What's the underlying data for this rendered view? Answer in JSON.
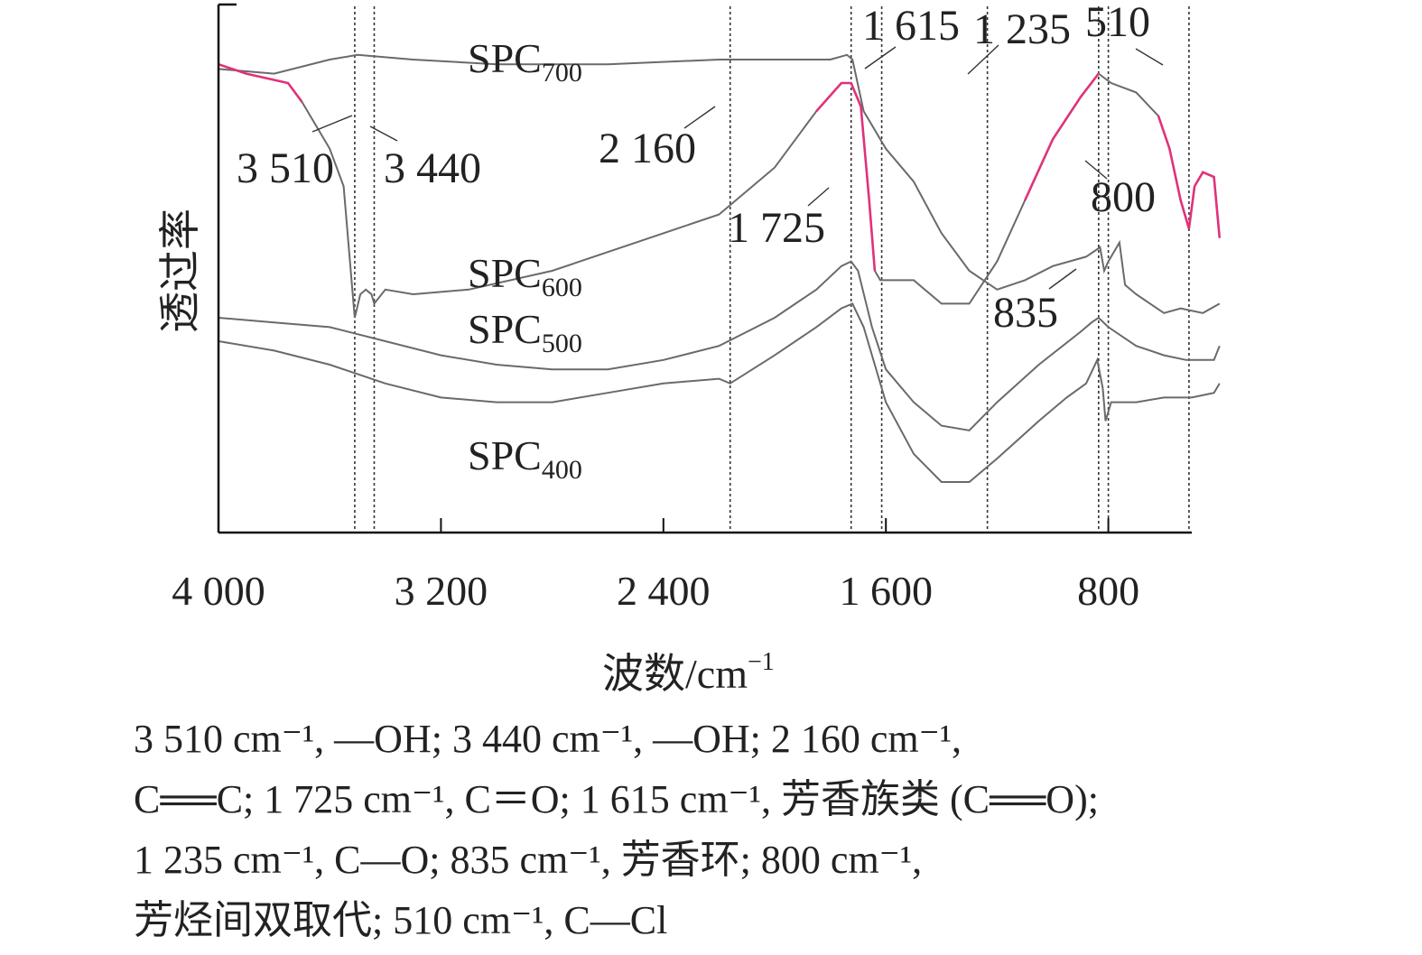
{
  "chart_data": {
    "type": "line",
    "xlabel": "波数/cm",
    "xlabel_sup": "−1",
    "ylabel": "透过率",
    "xlim": [
      4000,
      500
    ],
    "x_ticks": [
      {
        "value": 4000,
        "label": "4 000"
      },
      {
        "value": 3200,
        "label": "3 200"
      },
      {
        "value": 2400,
        "label": "2 400"
      },
      {
        "value": 1600,
        "label": "1 600"
      },
      {
        "value": 800,
        "label": "800"
      }
    ],
    "y_axis_values_shown": false,
    "colors": {
      "curve": "#6a6a6a",
      "highlight": "#e0327a",
      "axis": "#111111",
      "guide": "#333333"
    },
    "reference_lines": [
      3510,
      3440,
      2160,
      1725,
      1615,
      1235,
      835,
      800,
      510
    ],
    "peak_labels": [
      {
        "text": "3 510",
        "x": 3510
      },
      {
        "text": "3 440",
        "x": 3440
      },
      {
        "text": "2 160",
        "x": 2160
      },
      {
        "text": "1 725",
        "x": 1725
      },
      {
        "text": "1 615",
        "x": 1615
      },
      {
        "text": "1 235",
        "x": 1235
      },
      {
        "text": "510",
        "x": 510
      },
      {
        "text": "800",
        "x": 800
      },
      {
        "text": "835",
        "x": 835
      }
    ],
    "series": [
      {
        "name": "SPC",
        "sub": "700",
        "points": [
          [
            4000,
            0.93
          ],
          [
            3800,
            0.92
          ],
          [
            3600,
            0.95
          ],
          [
            3500,
            0.96
          ],
          [
            3300,
            0.95
          ],
          [
            3000,
            0.94
          ],
          [
            2600,
            0.94
          ],
          [
            2200,
            0.95
          ],
          [
            2000,
            0.95
          ],
          [
            1800,
            0.95
          ],
          [
            1740,
            0.96
          ],
          [
            1720,
            0.95
          ],
          [
            1680,
            0.84
          ],
          [
            1600,
            0.76
          ],
          [
            1500,
            0.69
          ],
          [
            1400,
            0.58
          ],
          [
            1300,
            0.5
          ],
          [
            1200,
            0.46
          ],
          [
            1100,
            0.48
          ],
          [
            1000,
            0.51
          ],
          [
            880,
            0.53
          ],
          [
            830,
            0.55
          ],
          [
            815,
            0.5
          ],
          [
            800,
            0.52
          ],
          [
            760,
            0.56
          ],
          [
            740,
            0.47
          ],
          [
            700,
            0.45
          ],
          [
            650,
            0.43
          ],
          [
            600,
            0.41
          ],
          [
            540,
            0.42
          ],
          [
            460,
            0.41
          ],
          [
            400,
            0.43
          ]
        ]
      },
      {
        "name": "SPC",
        "sub": "600",
        "highlight": [
          [
            4000,
            3700
          ],
          [
            1860,
            1630
          ],
          [
            1170,
            820
          ],
          [
            620,
            400
          ]
        ],
        "points": [
          [
            4000,
            0.94
          ],
          [
            3900,
            0.92
          ],
          [
            3750,
            0.9
          ],
          [
            3700,
            0.86
          ],
          [
            3600,
            0.76
          ],
          [
            3550,
            0.68
          ],
          [
            3520,
            0.47
          ],
          [
            3510,
            0.4
          ],
          [
            3490,
            0.45
          ],
          [
            3470,
            0.46
          ],
          [
            3450,
            0.45
          ],
          [
            3440,
            0.43
          ],
          [
            3400,
            0.46
          ],
          [
            3300,
            0.45
          ],
          [
            3100,
            0.46
          ],
          [
            2800,
            0.5
          ],
          [
            2500,
            0.56
          ],
          [
            2200,
            0.62
          ],
          [
            2000,
            0.72
          ],
          [
            1850,
            0.84
          ],
          [
            1760,
            0.9
          ],
          [
            1725,
            0.9
          ],
          [
            1690,
            0.85
          ],
          [
            1660,
            0.65
          ],
          [
            1640,
            0.5
          ],
          [
            1620,
            0.48
          ],
          [
            1600,
            0.48
          ],
          [
            1500,
            0.48
          ],
          [
            1400,
            0.43
          ],
          [
            1300,
            0.43
          ],
          [
            1200,
            0.52
          ],
          [
            1100,
            0.65
          ],
          [
            1000,
            0.78
          ],
          [
            900,
            0.87
          ],
          [
            835,
            0.92
          ],
          [
            790,
            0.9
          ],
          [
            700,
            0.88
          ],
          [
            620,
            0.83
          ],
          [
            580,
            0.76
          ],
          [
            540,
            0.65
          ],
          [
            510,
            0.59
          ],
          [
            490,
            0.68
          ],
          [
            460,
            0.71
          ],
          [
            420,
            0.7
          ],
          [
            400,
            0.57
          ]
        ]
      },
      {
        "name": "SPC",
        "sub": "500",
        "points": [
          [
            4000,
            0.4
          ],
          [
            3800,
            0.39
          ],
          [
            3600,
            0.38
          ],
          [
            3400,
            0.35
          ],
          [
            3200,
            0.32
          ],
          [
            3000,
            0.3
          ],
          [
            2800,
            0.29
          ],
          [
            2600,
            0.29
          ],
          [
            2400,
            0.31
          ],
          [
            2200,
            0.34
          ],
          [
            2000,
            0.4
          ],
          [
            1850,
            0.46
          ],
          [
            1760,
            0.51
          ],
          [
            1725,
            0.52
          ],
          [
            1700,
            0.5
          ],
          [
            1650,
            0.38
          ],
          [
            1600,
            0.29
          ],
          [
            1500,
            0.22
          ],
          [
            1400,
            0.17
          ],
          [
            1300,
            0.16
          ],
          [
            1200,
            0.22
          ],
          [
            1050,
            0.3
          ],
          [
            900,
            0.37
          ],
          [
            860,
            0.39
          ],
          [
            835,
            0.4
          ],
          [
            800,
            0.38
          ],
          [
            700,
            0.34
          ],
          [
            600,
            0.32
          ],
          [
            520,
            0.31
          ],
          [
            460,
            0.31
          ],
          [
            420,
            0.31
          ],
          [
            400,
            0.34
          ]
        ]
      },
      {
        "name": "SPC",
        "sub": "400",
        "points": [
          [
            4000,
            0.35
          ],
          [
            3800,
            0.33
          ],
          [
            3600,
            0.3
          ],
          [
            3400,
            0.26
          ],
          [
            3200,
            0.23
          ],
          [
            3000,
            0.22
          ],
          [
            2800,
            0.22
          ],
          [
            2600,
            0.24
          ],
          [
            2400,
            0.26
          ],
          [
            2200,
            0.27
          ],
          [
            2160,
            0.26
          ],
          [
            2000,
            0.32
          ],
          [
            1850,
            0.38
          ],
          [
            1760,
            0.42
          ],
          [
            1720,
            0.43
          ],
          [
            1680,
            0.38
          ],
          [
            1640,
            0.3
          ],
          [
            1600,
            0.22
          ],
          [
            1500,
            0.11
          ],
          [
            1400,
            0.05
          ],
          [
            1300,
            0.05
          ],
          [
            1200,
            0.1
          ],
          [
            1050,
            0.18
          ],
          [
            950,
            0.23
          ],
          [
            880,
            0.26
          ],
          [
            840,
            0.31
          ],
          [
            820,
            0.25
          ],
          [
            810,
            0.18
          ],
          [
            790,
            0.22
          ],
          [
            700,
            0.22
          ],
          [
            600,
            0.23
          ],
          [
            500,
            0.23
          ],
          [
            420,
            0.24
          ],
          [
            400,
            0.26
          ]
        ]
      }
    ]
  },
  "caption_lines": [
    "3 510 cm⁻¹, —OH; 3 440 cm⁻¹, —OH; 2 160 cm⁻¹,",
    "C══C; 1 725 cm⁻¹, C＝O; 1 615 cm⁻¹, 芳香族类 (C══O);",
    "1 235 cm⁻¹, C—O; 835 cm⁻¹, 芳香环; 800 cm⁻¹,",
    "芳烃间双取代; 510 cm⁻¹, C—Cl"
  ]
}
